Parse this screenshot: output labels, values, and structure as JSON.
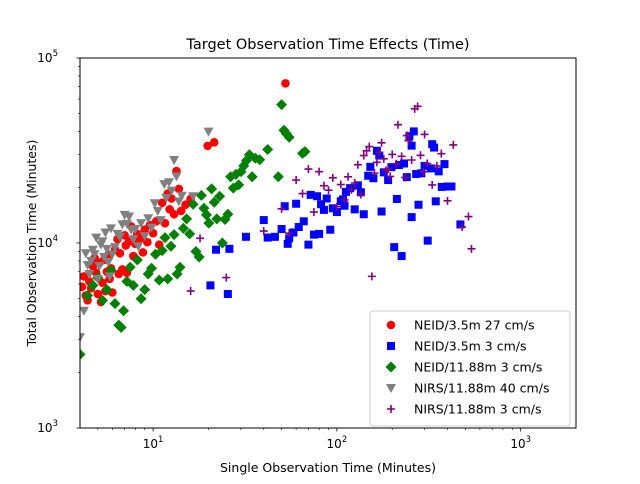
{
  "chart_data": {
    "type": "scatter",
    "title": "Target Observation Time Effects (Time)",
    "xlabel": "Single Observation Time (Minutes)",
    "ylabel": "Total Observation Time (Minutes)",
    "xscale": "log",
    "yscale": "log",
    "xlim": [
      4,
      2000
    ],
    "ylim": [
      1000,
      100000
    ],
    "x_ticks": [
      {
        "value": 10,
        "base": "10",
        "exp": "1"
      },
      {
        "value": 100,
        "base": "10",
        "exp": "2"
      },
      {
        "value": 1000,
        "base": "10",
        "exp": "3"
      }
    ],
    "y_ticks": [
      {
        "value": 1000,
        "base": "10",
        "exp": "3"
      },
      {
        "value": 10000,
        "base": "10",
        "exp": "4"
      },
      {
        "value": 100000,
        "base": "10",
        "exp": "5"
      }
    ],
    "grid": false,
    "legend": "lower-right",
    "series": [
      {
        "name": "NEID/3.5m 27 cm/s",
        "marker": "circle",
        "color": "#ff0000",
        "points": [
          [
            4.1,
            5800
          ],
          [
            4.2,
            6600
          ],
          [
            4.3,
            5200
          ],
          [
            4.4,
            4900
          ],
          [
            4.5,
            6200
          ],
          [
            4.6,
            5700
          ],
          [
            4.7,
            7500
          ],
          [
            4.8,
            8300
          ],
          [
            4.9,
            6900
          ],
          [
            5.0,
            5300
          ],
          [
            5.1,
            7800
          ],
          [
            5.2,
            4800
          ],
          [
            5.3,
            6100
          ],
          [
            5.4,
            8100
          ],
          [
            5.5,
            5500
          ],
          [
            5.6,
            7000
          ],
          [
            5.7,
            8600
          ],
          [
            5.8,
            6400
          ],
          [
            5.9,
            7300
          ],
          [
            6.0,
            5400
          ],
          [
            6.2,
            9200
          ],
          [
            6.4,
            10500
          ],
          [
            6.5,
            6800
          ],
          [
            6.6,
            8800
          ],
          [
            6.8,
            7200
          ],
          [
            7.0,
            11000
          ],
          [
            7.1,
            9700
          ],
          [
            7.2,
            6900
          ],
          [
            7.4,
            10200
          ],
          [
            7.6,
            12300
          ],
          [
            7.8,
            8500
          ],
          [
            8.0,
            9900
          ],
          [
            8.2,
            11200
          ],
          [
            8.5,
            10600
          ],
          [
            8.8,
            8900
          ],
          [
            9.0,
            11800
          ],
          [
            9.3,
            10100
          ],
          [
            9.6,
            12500
          ],
          [
            10.0,
            11300
          ],
          [
            10.4,
            13100
          ],
          [
            10.8,
            9800
          ],
          [
            11.2,
            16500
          ],
          [
            11.6,
            12800
          ],
          [
            12.0,
            18500
          ],
          [
            12.3,
            15200
          ],
          [
            12.6,
            17400
          ],
          [
            13.0,
            14300
          ],
          [
            13.4,
            24500
          ],
          [
            13.8,
            19600
          ],
          [
            14.2,
            14900
          ],
          [
            15.0,
            16100
          ],
          [
            16.0,
            17300
          ],
          [
            19.8,
            33500
          ],
          [
            21.5,
            35000
          ],
          [
            52.5,
            73000
          ]
        ]
      },
      {
        "name": "NEID/3.5m 3 cm/s",
        "marker": "square",
        "color": "#0000ff",
        "points": [
          [
            20.5,
            5900
          ],
          [
            22.0,
            9200
          ],
          [
            25.5,
            5300
          ],
          [
            26.0,
            9300
          ],
          [
            32.0,
            10800
          ],
          [
            40.0,
            13300
          ],
          [
            42.0,
            10700
          ],
          [
            46.0,
            10800
          ],
          [
            50.0,
            11900
          ],
          [
            52.0,
            15800
          ],
          [
            54.0,
            9900
          ],
          [
            55.0,
            10600
          ],
          [
            58.0,
            11400
          ],
          [
            60.0,
            16300
          ],
          [
            62.0,
            12200
          ],
          [
            66.0,
            13100
          ],
          [
            70.0,
            9800
          ],
          [
            72.0,
            18200
          ],
          [
            75.0,
            11100
          ],
          [
            78.0,
            17900
          ],
          [
            80.0,
            11200
          ],
          [
            82.0,
            16200
          ],
          [
            85.0,
            15100
          ],
          [
            88.0,
            17400
          ],
          [
            92.0,
            11800
          ],
          [
            95.0,
            15400
          ],
          [
            100.0,
            14700
          ],
          [
            105.0,
            16800
          ],
          [
            108.0,
            17200
          ],
          [
            110.0,
            15900
          ],
          [
            112.0,
            18900
          ],
          [
            118.0,
            19800
          ],
          [
            125.0,
            15200
          ],
          [
            130.0,
            20500
          ],
          [
            135.0,
            18800
          ],
          [
            140.0,
            14300
          ],
          [
            148.0,
            23100
          ],
          [
            152.0,
            25800
          ],
          [
            158.0,
            22400
          ],
          [
            165.0,
            31500
          ],
          [
            170.0,
            29700
          ],
          [
            175.0,
            14800
          ],
          [
            180.0,
            24100
          ],
          [
            190.0,
            21900
          ],
          [
            198.0,
            25700
          ],
          [
            205.0,
            9500
          ],
          [
            212.0,
            17300
          ],
          [
            218.0,
            26400
          ],
          [
            225.0,
            8500
          ],
          [
            232.0,
            26900
          ],
          [
            240.0,
            22700
          ],
          [
            248.0,
            37800
          ],
          [
            255.0,
            13800
          ],
          [
            262.0,
            40100
          ],
          [
            270.0,
            23600
          ],
          [
            278.0,
            16100
          ],
          [
            288.0,
            23800
          ],
          [
            300.0,
            26100
          ],
          [
            312.0,
            10300
          ],
          [
            325.0,
            25300
          ],
          [
            338.0,
            32800
          ],
          [
            345.0,
            16800
          ],
          [
            358.0,
            24400
          ],
          [
            372.0,
            20100
          ],
          [
            385.0,
            26700
          ],
          [
            400.0,
            20200
          ],
          [
            420.0,
            20200
          ],
          [
            470.0,
            12600
          ],
          [
            330.0,
            34200
          ],
          [
            255.0,
            33600
          ]
        ]
      },
      {
        "name": "NEID/11.88m 3 cm/s",
        "marker": "diamond",
        "color": "#008000",
        "points": [
          [
            4.0,
            2500
          ],
          [
            4.4,
            5200
          ],
          [
            4.7,
            5900
          ],
          [
            5.0,
            6500
          ],
          [
            5.3,
            4900
          ],
          [
            5.6,
            5600
          ],
          [
            5.9,
            7100
          ],
          [
            6.2,
            4700
          ],
          [
            6.5,
            3600
          ],
          [
            6.7,
            3500
          ],
          [
            6.9,
            4300
          ],
          [
            7.2,
            6200
          ],
          [
            7.5,
            7400
          ],
          [
            7.8,
            5900
          ],
          [
            8.2,
            8100
          ],
          [
            8.6,
            5000
          ],
          [
            9.0,
            5600
          ],
          [
            9.4,
            6800
          ],
          [
            9.8,
            7300
          ],
          [
            10.3,
            8700
          ],
          [
            10.8,
            6300
          ],
          [
            11.2,
            9100
          ],
          [
            11.6,
            10700
          ],
          [
            12.0,
            6400
          ],
          [
            12.5,
            9600
          ],
          [
            13.0,
            11100
          ],
          [
            13.5,
            6800
          ],
          [
            14.0,
            7400
          ],
          [
            14.6,
            12000
          ],
          [
            15.2,
            13500
          ],
          [
            15.8,
            11200
          ],
          [
            16.5,
            16200
          ],
          [
            17.1,
            9000
          ],
          [
            17.8,
            8400
          ],
          [
            18.3,
            18100
          ],
          [
            18.9,
            15400
          ],
          [
            19.5,
            14200
          ],
          [
            20.1,
            12800
          ],
          [
            20.8,
            19600
          ],
          [
            21.5,
            16600
          ],
          [
            22.2,
            13500
          ],
          [
            23.0,
            17900
          ],
          [
            23.8,
            10000
          ],
          [
            24.6,
            13400
          ],
          [
            25.5,
            14300
          ],
          [
            26.4,
            22800
          ],
          [
            27.3,
            19800
          ],
          [
            28.2,
            23500
          ],
          [
            29.2,
            20600
          ],
          [
            30.1,
            24300
          ],
          [
            31.1,
            26100
          ],
          [
            32.2,
            27900
          ],
          [
            33.4,
            30000
          ],
          [
            34.6,
            22800
          ],
          [
            36.0,
            28700
          ],
          [
            38.0,
            28200
          ],
          [
            42.0,
            32000
          ],
          [
            48.0,
            22800
          ],
          [
            50.0,
            56000
          ],
          [
            51.5,
            40700
          ],
          [
            53.0,
            39100
          ],
          [
            55.0,
            37300
          ],
          [
            65.0,
            30500
          ],
          [
            67.0,
            31200
          ]
        ]
      },
      {
        "name": "NIRS/11.88m 40 cm/s",
        "marker": "triangle-down",
        "color": "#808080",
        "points": [
          [
            4.0,
            3100
          ],
          [
            4.2,
            4300
          ],
          [
            4.3,
            8800
          ],
          [
            4.4,
            7600
          ],
          [
            4.5,
            6800
          ],
          [
            4.6,
            8000
          ],
          [
            4.7,
            9200
          ],
          [
            4.8,
            8700
          ],
          [
            4.9,
            10700
          ],
          [
            5.0,
            6400
          ],
          [
            5.1,
            7500
          ],
          [
            5.2,
            9800
          ],
          [
            5.3,
            10200
          ],
          [
            5.4,
            8400
          ],
          [
            5.5,
            11400
          ],
          [
            5.6,
            9300
          ],
          [
            5.7,
            7900
          ],
          [
            5.8,
            6600
          ],
          [
            5.9,
            12000
          ],
          [
            6.0,
            8700
          ],
          [
            6.2,
            9500
          ],
          [
            6.4,
            11200
          ],
          [
            6.6,
            10800
          ],
          [
            6.8,
            12600
          ],
          [
            7.0,
            14200
          ],
          [
            7.2,
            12700
          ],
          [
            7.4,
            13900
          ],
          [
            7.6,
            11800
          ],
          [
            7.8,
            10500
          ],
          [
            8.0,
            11900
          ],
          [
            8.3,
            9600
          ],
          [
            8.6,
            12800
          ],
          [
            9.0,
            10900
          ],
          [
            9.4,
            13600
          ],
          [
            9.8,
            12100
          ],
          [
            10.2,
            16400
          ],
          [
            10.6,
            14900
          ],
          [
            11.0,
            13300
          ],
          [
            11.5,
            20800
          ],
          [
            11.8,
            17500
          ],
          [
            12.2,
            21300
          ],
          [
            12.6,
            19200
          ],
          [
            13.0,
            28100
          ],
          [
            13.4,
            22900
          ],
          [
            13.8,
            16800
          ],
          [
            14.3,
            18000
          ],
          [
            16.5,
            17900
          ],
          [
            20.0,
            40000
          ]
        ]
      },
      {
        "name": "NIRS/11.88m 3 cm/s",
        "marker": "plus",
        "color": "#800080",
        "points": [
          [
            16.0,
            5500
          ],
          [
            18.0,
            10600
          ],
          [
            25.0,
            6500
          ],
          [
            40.0,
            11600
          ],
          [
            50.0,
            15300
          ],
          [
            55.0,
            11300
          ],
          [
            60.0,
            21900
          ],
          [
            65.0,
            18500
          ],
          [
            70.0,
            25100
          ],
          [
            75.0,
            14700
          ],
          [
            80.0,
            24300
          ],
          [
            85.0,
            20400
          ],
          [
            90.0,
            19300
          ],
          [
            95.0,
            22500
          ],
          [
            100.0,
            15700
          ],
          [
            105.0,
            20700
          ],
          [
            110.0,
            17100
          ],
          [
            115.0,
            22800
          ],
          [
            120.0,
            19400
          ],
          [
            125.0,
            21100
          ],
          [
            130.0,
            26500
          ],
          [
            135.0,
            18300
          ],
          [
            140.0,
            29700
          ],
          [
            145.0,
            31500
          ],
          [
            150.0,
            33200
          ],
          [
            155.0,
            6600
          ],
          [
            160.0,
            23900
          ],
          [
            165.0,
            27300
          ],
          [
            170.0,
            30900
          ],
          [
            175.0,
            34800
          ],
          [
            180.0,
            28500
          ],
          [
            185.0,
            24700
          ],
          [
            190.0,
            25100
          ],
          [
            195.0,
            22900
          ],
          [
            200.0,
            30100
          ],
          [
            210.0,
            26800
          ],
          [
            215.0,
            43600
          ],
          [
            225.0,
            29400
          ],
          [
            235.0,
            22600
          ],
          [
            245.0,
            35700
          ],
          [
            255.0,
            28100
          ],
          [
            265.0,
            53100
          ],
          [
            275.0,
            54800
          ],
          [
            285.0,
            29800
          ],
          [
            295.0,
            24300
          ],
          [
            310.0,
            26900
          ],
          [
            330.0,
            20600
          ],
          [
            350.0,
            26100
          ],
          [
            370.0,
            30400
          ],
          [
            400.0,
            16900
          ],
          [
            430.0,
            33900
          ],
          [
            480.0,
            12200
          ],
          [
            520.0,
            13900
          ],
          [
            540.0,
            9300
          ],
          [
            300.0,
            38600
          ],
          [
            240.0,
            38100
          ]
        ]
      }
    ]
  }
}
